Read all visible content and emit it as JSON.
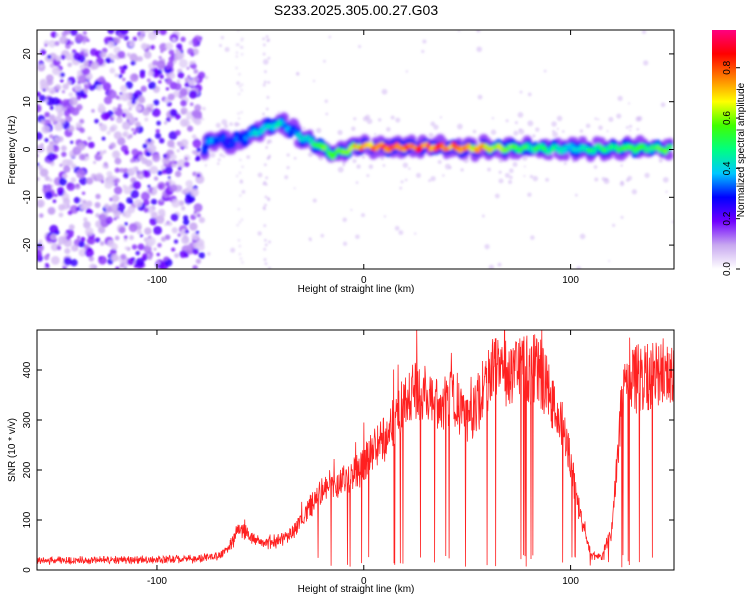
{
  "title": "S233.2025.305.00.27.G03",
  "colorbar": {
    "label": "Normalized spectral amplitude",
    "min": 0.0,
    "max": 0.95,
    "ticks": [
      0.0,
      0.2,
      0.4,
      0.6,
      0.8
    ],
    "tick_labels": [
      "0.0",
      "0.2",
      "0.4",
      "0.6",
      "0.8"
    ],
    "colors": [
      "#ffffff",
      "#c8a8f0",
      "#7000ff",
      "#0000ff",
      "#00c8ff",
      "#00ff80",
      "#40ff00",
      "#ffff00",
      "#ff8000",
      "#ff0000",
      "#ff0080"
    ]
  },
  "chart_data": [
    {
      "type": "heatmap",
      "xlabel": "Height of straight line (km)",
      "ylabel": "Frequency (Hz)",
      "xlim": [
        -158,
        150
      ],
      "ylim": [
        -25,
        25
      ],
      "x_ticks": [
        -100,
        0,
        100
      ],
      "x_tick_labels": [
        "-100",
        "0",
        "100"
      ],
      "y_ticks": [
        -20,
        -10,
        0,
        10,
        20
      ],
      "y_tick_labels": [
        "-20",
        "-10",
        "0",
        "10",
        "20"
      ],
      "ridge": {
        "x": [
          -77,
          -74,
          -70,
          -65,
          -60,
          -55,
          -50,
          -45,
          -40,
          -35,
          -30,
          -25,
          -20,
          -15,
          -10,
          -5,
          0,
          10,
          20,
          30,
          40,
          50,
          60,
          70,
          80,
          90,
          100,
          110,
          120,
          130,
          140,
          148
        ],
        "freq": [
          0,
          2,
          2.5,
          1.5,
          2.0,
          3.0,
          4.0,
          5.0,
          5.5,
          4.0,
          2.5,
          1.5,
          0.5,
          -1.0,
          -0.5,
          0.5,
          0.8,
          0.5,
          0.5,
          0.5,
          0.5,
          0.3,
          0.3,
          0.3,
          0.3,
          0.0,
          0.2,
          0.0,
          0.3,
          0.3,
          0.2,
          0.0
        ],
        "amplitude": [
          0.3,
          0.4,
          0.35,
          0.3,
          0.35,
          0.4,
          0.45,
          0.5,
          0.45,
          0.35,
          0.45,
          0.5,
          0.6,
          0.55,
          0.6,
          0.75,
          0.85,
          0.9,
          0.9,
          0.9,
          0.85,
          0.8,
          0.75,
          0.65,
          0.55,
          0.5,
          0.45,
          0.5,
          0.55,
          0.55,
          0.55,
          0.6
        ]
      },
      "noise_region_x": [
        -158,
        -78
      ],
      "noise_amplitude_range": [
        0.05,
        0.25
      ]
    },
    {
      "type": "line",
      "xlabel": "Height of straight line (km)",
      "ylabel": "SNR (10 * v/v)",
      "xlim": [
        -158,
        150
      ],
      "ylim": [
        0,
        480
      ],
      "x_ticks": [
        -100,
        0,
        100
      ],
      "x_tick_labels": [
        "-100",
        "0",
        "100"
      ],
      "y_ticks": [
        0,
        100,
        200,
        300,
        400
      ],
      "y_tick_labels": [
        "0",
        "100",
        "200",
        "300",
        "400"
      ],
      "color": "#ff2020",
      "envelope": {
        "x": [
          -158,
          -120,
          -80,
          -70,
          -65,
          -60,
          -55,
          -50,
          -45,
          -40,
          -35,
          -30,
          -25,
          -20,
          -15,
          -10,
          -5,
          0,
          5,
          10,
          15,
          20,
          25,
          30,
          35,
          40,
          45,
          50,
          55,
          60,
          65,
          70,
          75,
          80,
          85,
          90,
          95,
          100,
          105,
          110,
          115,
          120,
          125,
          130,
          135,
          140,
          145,
          150
        ],
        "y": [
          18,
          20,
          22,
          28,
          45,
          85,
          65,
          55,
          55,
          60,
          75,
          100,
          130,
          160,
          170,
          175,
          195,
          210,
          240,
          265,
          300,
          330,
          355,
          345,
          330,
          340,
          340,
          300,
          330,
          390,
          400,
          390,
          400,
          405,
          400,
          350,
          300,
          220,
          100,
          30,
          25,
          80,
          350,
          380,
          385,
          390,
          395,
          400
        ]
      }
    }
  ]
}
